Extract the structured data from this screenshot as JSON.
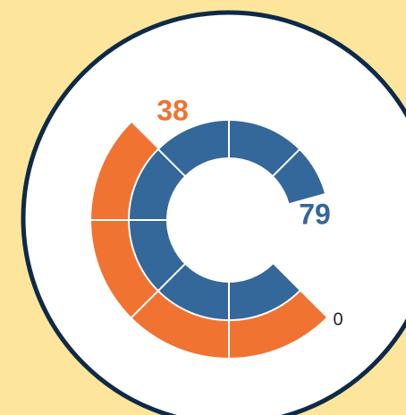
{
  "chart_data": {
    "type": "radial-gauge",
    "min": 0,
    "rings": [
      {
        "value": 38,
        "max": 76,
        "color": "#f07331"
      },
      {
        "value": 79,
        "max": 95,
        "color": "#34679a"
      }
    ]
  }
}
